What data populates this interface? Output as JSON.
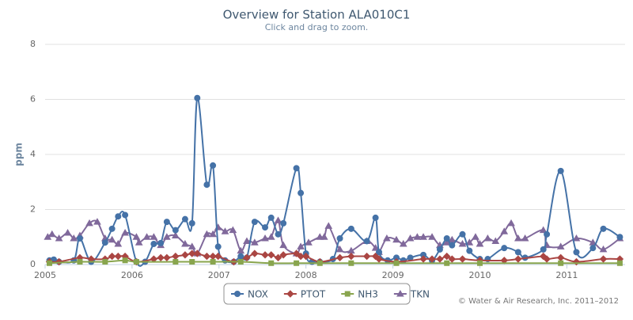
{
  "chart_data": {
    "type": "line",
    "title": "Overview for Station ALA010C1",
    "subtitle": "Click and drag to zoom.",
    "y_label": "ppm",
    "credits": "© Water & Air Research, Inc. 2011–2012",
    "xlim": [
      2005,
      2011.67
    ],
    "xticks": [
      2005,
      2006,
      2007,
      2008,
      2009,
      2010,
      2011
    ],
    "ylim": [
      0,
      8
    ],
    "yticks": [
      0,
      2,
      4,
      6,
      8
    ],
    "grid": true,
    "legend": "bottom",
    "series": [
      {
        "name": "NOX",
        "color": "#4572a7",
        "marker": "circle",
        "x": [
          2005.05,
          2005.1,
          2005.16,
          2005.33,
          2005.4,
          2005.53,
          2005.69,
          2005.77,
          2005.84,
          2005.92,
          2006.05,
          2006.15,
          2006.25,
          2006.33,
          2006.4,
          2006.5,
          2006.61,
          2006.69,
          2006.75,
          2006.86,
          2006.93,
          2006.99,
          2007.07,
          2007.17,
          2007.25,
          2007.32,
          2007.41,
          2007.53,
          2007.6,
          2007.68,
          2007.74,
          2007.89,
          2007.94,
          2008.0,
          2008.07,
          2008.16,
          2008.31,
          2008.39,
          2008.52,
          2008.7,
          2008.8,
          2008.84,
          2008.94,
          2009.04,
          2009.12,
          2009.2,
          2009.35,
          2009.45,
          2009.54,
          2009.62,
          2009.68,
          2009.8,
          2009.88,
          2010.0,
          2010.09,
          2010.28,
          2010.44,
          2010.52,
          2010.73,
          2010.77,
          2010.93,
          2011.11,
          2011.3,
          2011.42,
          2011.61
        ],
        "values": [
          0.15,
          0.18,
          0.1,
          0.15,
          0.95,
          0.1,
          0.8,
          1.3,
          1.75,
          1.8,
          0.1,
          0.1,
          0.75,
          0.78,
          1.55,
          1.25,
          1.65,
          1.5,
          6.05,
          2.9,
          3.6,
          0.65,
          0.15,
          0.1,
          0.3,
          0.25,
          1.55,
          1.35,
          1.7,
          1.1,
          1.5,
          3.5,
          2.6,
          0.4,
          0.1,
          0.1,
          0.2,
          0.95,
          1.3,
          0.85,
          1.7,
          0.45,
          0.15,
          0.25,
          0.15,
          0.25,
          0.35,
          0.15,
          0.55,
          0.95,
          0.7,
          1.1,
          0.5,
          0.2,
          0.2,
          0.6,
          0.45,
          0.25,
          0.55,
          1.1,
          3.4,
          0.45,
          0.6,
          1.3,
          1.0
        ]
      },
      {
        "name": "PTOT",
        "color": "#aa4643",
        "marker": "diamond",
        "x": [
          2005.05,
          2005.16,
          2005.4,
          2005.53,
          2005.69,
          2005.77,
          2005.84,
          2005.92,
          2006.05,
          2006.25,
          2006.33,
          2006.4,
          2006.5,
          2006.61,
          2006.69,
          2006.75,
          2006.86,
          2006.93,
          2006.99,
          2007.17,
          2007.32,
          2007.41,
          2007.53,
          2007.6,
          2007.68,
          2007.74,
          2007.89,
          2007.94,
          2008.0,
          2008.16,
          2008.39,
          2008.52,
          2008.7,
          2008.8,
          2008.84,
          2009.04,
          2009.35,
          2009.45,
          2009.54,
          2009.62,
          2009.68,
          2009.8,
          2010.0,
          2010.28,
          2010.44,
          2010.73,
          2010.77,
          2010.93,
          2011.11,
          2011.42,
          2011.61
        ],
        "values": [
          0.1,
          0.1,
          0.25,
          0.2,
          0.2,
          0.3,
          0.3,
          0.3,
          0.1,
          0.2,
          0.25,
          0.25,
          0.3,
          0.35,
          0.4,
          0.4,
          0.3,
          0.3,
          0.3,
          0.1,
          0.25,
          0.4,
          0.35,
          0.35,
          0.25,
          0.35,
          0.4,
          0.3,
          0.3,
          0.1,
          0.25,
          0.3,
          0.3,
          0.3,
          0.2,
          0.1,
          0.2,
          0.2,
          0.2,
          0.3,
          0.2,
          0.2,
          0.15,
          0.15,
          0.2,
          0.3,
          0.2,
          0.25,
          0.1,
          0.2,
          0.2
        ]
      },
      {
        "name": "NH3",
        "color": "#89a54e",
        "marker": "square",
        "x": [
          2005.05,
          2005.4,
          2005.69,
          2005.92,
          2006.05,
          2006.5,
          2006.69,
          2006.93,
          2007.25,
          2007.6,
          2007.89,
          2008.16,
          2008.52,
          2009.04,
          2009.62,
          2010.0,
          2010.93,
          2011.61
        ],
        "values": [
          0.05,
          0.1,
          0.1,
          0.15,
          0.1,
          0.1,
          0.1,
          0.1,
          0.1,
          0.05,
          0.05,
          0.05,
          0.05,
          0.05,
          0.05,
          0.05,
          0.05,
          0.05
        ]
      },
      {
        "name": "TKN",
        "color": "#80699b",
        "marker": "triangle",
        "x": [
          2005.03,
          2005.08,
          2005.16,
          2005.26,
          2005.33,
          2005.4,
          2005.51,
          2005.6,
          2005.69,
          2005.77,
          2005.84,
          2005.92,
          2006.05,
          2006.08,
          2006.17,
          2006.25,
          2006.33,
          2006.4,
          2006.5,
          2006.61,
          2006.69,
          2006.75,
          2006.86,
          2006.93,
          2006.99,
          2007.07,
          2007.16,
          2007.25,
          2007.32,
          2007.41,
          2007.53,
          2007.6,
          2007.68,
          2007.74,
          2007.89,
          2007.94,
          2008.03,
          2008.16,
          2008.21,
          2008.26,
          2008.39,
          2008.52,
          2008.7,
          2008.8,
          2008.84,
          2008.93,
          2009.04,
          2009.12,
          2009.2,
          2009.28,
          2009.35,
          2009.45,
          2009.54,
          2009.62,
          2009.68,
          2009.8,
          2009.88,
          2009.95,
          2010.0,
          2010.09,
          2010.18,
          2010.28,
          2010.36,
          2010.44,
          2010.52,
          2010.73,
          2010.77,
          2010.93,
          2011.11,
          2011.3,
          2011.42,
          2011.61
        ],
        "values": [
          1.0,
          1.1,
          0.95,
          1.15,
          0.95,
          1.05,
          1.5,
          1.55,
          0.95,
          0.9,
          0.75,
          1.15,
          1.0,
          0.8,
          1.0,
          1.0,
          0.7,
          1.0,
          1.05,
          0.75,
          0.65,
          0.4,
          1.1,
          1.1,
          1.35,
          1.2,
          1.25,
          0.5,
          0.85,
          0.8,
          0.95,
          1.0,
          1.6,
          0.7,
          0.4,
          0.65,
          0.8,
          1.0,
          1.0,
          1.4,
          0.55,
          0.5,
          0.85,
          0.6,
          0.45,
          0.95,
          0.9,
          0.75,
          0.95,
          1.0,
          1.0,
          1.0,
          0.7,
          0.8,
          0.9,
          0.75,
          0.8,
          1.0,
          0.75,
          0.95,
          0.85,
          1.2,
          1.5,
          0.95,
          0.95,
          1.25,
          0.7,
          0.65,
          0.95,
          0.8,
          0.55,
          0.95
        ]
      }
    ]
  }
}
